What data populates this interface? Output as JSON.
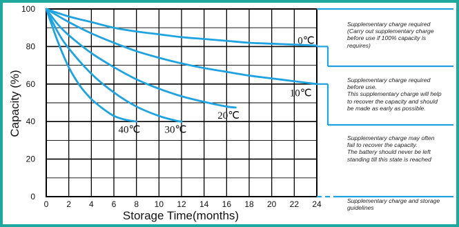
{
  "chart_data": {
    "type": "line",
    "xlabel": "Storage  Time(months)",
    "ylabel": "Capacity  (%)",
    "xlim": [
      0,
      24
    ],
    "ylim": [
      0,
      100
    ],
    "x_ticks": [
      "0",
      "2",
      "4",
      "6",
      "8",
      "10",
      "12",
      "14",
      "16",
      "18",
      "20",
      "22",
      "24"
    ],
    "y_ticks": [
      "0",
      "20",
      "40",
      "60",
      "80",
      "100"
    ],
    "grid": true,
    "line_color": "#1fa3e0",
    "frame_color": "#1fa89e",
    "series": [
      {
        "name": "0℃",
        "points": [
          [
            0,
            100
          ],
          [
            2,
            96
          ],
          [
            4,
            93
          ],
          [
            6,
            90
          ],
          [
            8,
            88
          ],
          [
            10,
            86.5
          ],
          [
            12,
            85
          ],
          [
            14,
            84
          ],
          [
            16,
            83
          ],
          [
            18,
            82
          ],
          [
            20,
            81.5
          ],
          [
            22,
            81
          ],
          [
            24,
            80.5
          ]
        ]
      },
      {
        "name": "10℃",
        "points": [
          [
            0,
            100
          ],
          [
            2,
            93
          ],
          [
            4,
            87
          ],
          [
            6,
            82
          ],
          [
            8,
            77.5
          ],
          [
            10,
            74
          ],
          [
            12,
            71
          ],
          [
            14,
            68.5
          ],
          [
            16,
            66.5
          ],
          [
            18,
            64.5
          ],
          [
            20,
            63
          ],
          [
            22,
            61.5
          ],
          [
            24,
            60
          ]
        ]
      },
      {
        "name": "20℃",
        "points": [
          [
            0,
            100
          ],
          [
            1,
            92
          ],
          [
            2,
            86
          ],
          [
            4,
            76.5
          ],
          [
            6,
            69
          ],
          [
            8,
            62.5
          ],
          [
            10,
            57.5
          ],
          [
            12,
            53.5
          ],
          [
            14,
            50.5
          ],
          [
            16,
            48
          ],
          [
            16.8,
            47.5
          ]
        ]
      },
      {
        "name": "30℃",
        "points": [
          [
            0,
            100
          ],
          [
            1,
            88
          ],
          [
            2,
            79
          ],
          [
            4,
            65.5
          ],
          [
            6,
            55.5
          ],
          [
            8,
            48
          ],
          [
            10,
            43
          ],
          [
            11.5,
            40.5
          ],
          [
            12,
            40
          ]
        ]
      },
      {
        "name": "40℃",
        "points": [
          [
            0,
            100
          ],
          [
            1,
            83
          ],
          [
            2,
            69
          ],
          [
            3,
            59
          ],
          [
            4,
            52
          ],
          [
            5,
            47
          ],
          [
            6,
            43
          ],
          [
            7,
            41
          ],
          [
            8,
            40
          ]
        ]
      }
    ],
    "curve_labels": [
      {
        "text": "0℃",
        "x": 22.3,
        "y": 81.5
      },
      {
        "text": "10℃",
        "x": 21.6,
        "y": 53.5
      },
      {
        "text": "20℃",
        "x": 15.2,
        "y": 41.5
      },
      {
        "text": "30℃",
        "x": 10.5,
        "y": 34
      },
      {
        "text": "40℃",
        "x": 6.4,
        "y": 34
      }
    ]
  },
  "annotations": [
    {
      "text": "Supplementary charge required\n(Carry out supplementary charge\nbefore use if 100% capacity is\nrequires)"
    },
    {
      "text": "Supplementary charge required\nbefore use.\nThis supplementary charge will help\nto recover the capacity and should\nbe made  as early as possible."
    },
    {
      "text": "Supplementary charge may often\nfail to recover the capacity.\nThe battery should never be left\nstanding till this state is reached"
    },
    {
      "text": "Supplementary charge and storage\nguidelines"
    }
  ]
}
